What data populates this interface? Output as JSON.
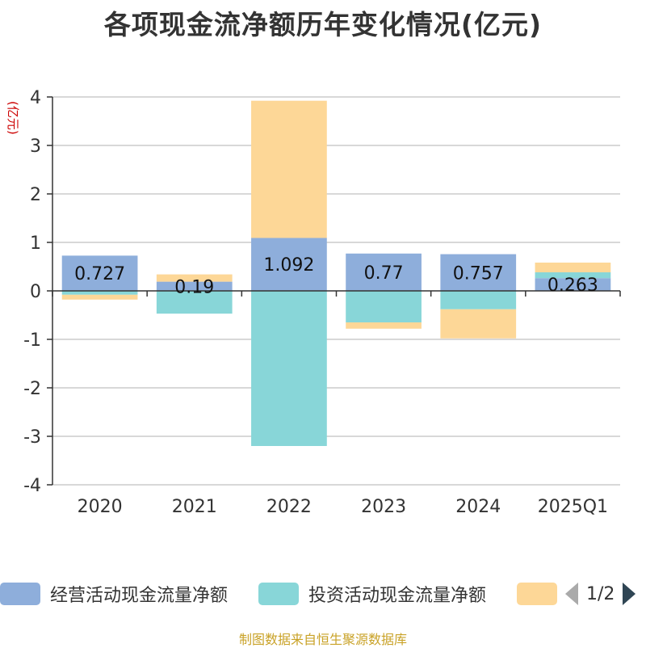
{
  "title": "各项现金流净额历年变化情况(亿元)",
  "y_unit": "(亿元)",
  "source": "制图数据来自恒生聚源数据库",
  "legend": {
    "items": [
      {
        "label": "经营活动现金流量净额",
        "color": "#8eaedb"
      },
      {
        "label": "投资活动现金流量净额",
        "color": "#88d6d8"
      },
      {
        "label": "",
        "color": "#fdd797"
      }
    ],
    "page": "1/2"
  },
  "chart_data": {
    "type": "bar",
    "stacked": true,
    "categories": [
      "2020",
      "2021",
      "2022",
      "2023",
      "2024",
      "2025Q1"
    ],
    "ylim": [
      -4,
      4
    ],
    "yticks": [
      4,
      3,
      2,
      1,
      0,
      -1,
      -2,
      -3,
      -4
    ],
    "grid": true,
    "legend_position": "bottom",
    "series": [
      {
        "name": "经营活动现金流量净额",
        "color": "#8eaedb",
        "values": [
          0.727,
          0.19,
          1.092,
          0.77,
          0.757,
          0.263
        ]
      },
      {
        "name": "投资活动现金流量净额",
        "color": "#88d6d8",
        "values": [
          -0.08,
          -0.47,
          -3.2,
          -0.65,
          -0.38,
          0.12
        ]
      },
      {
        "color": "#fdd797",
        "values": [
          -0.1,
          0.15,
          2.83,
          -0.13,
          -0.6,
          0.2
        ]
      }
    ],
    "data_labels": [
      "0.727",
      "0.19",
      "1.092",
      "0.77",
      "0.757",
      "0.263"
    ]
  }
}
